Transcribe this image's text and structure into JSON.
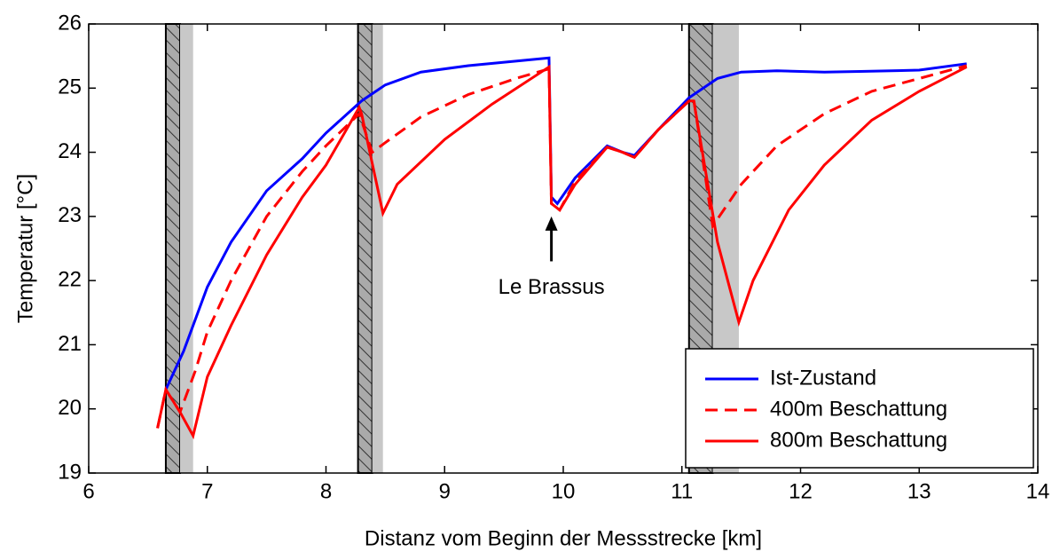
{
  "chart_data": {
    "type": "line",
    "xlabel": "Distanz vom Beginn der Messstrecke [km]",
    "ylabel": "Temperatur [°C]",
    "xlim": [
      6,
      14
    ],
    "xticks": [
      6,
      7,
      8,
      9,
      10,
      11,
      12,
      13,
      14
    ],
    "ylim": [
      19,
      26
    ],
    "yticks": [
      19,
      20,
      21,
      22,
      23,
      24,
      25,
      26
    ],
    "grid": false,
    "legend": "lower right",
    "regions": [
      {
        "start": 6.65,
        "end": 6.77,
        "style": "hatched"
      },
      {
        "start": 6.77,
        "end": 6.88,
        "style": "gray"
      },
      {
        "start": 8.27,
        "end": 8.39,
        "style": "hatched"
      },
      {
        "start": 8.39,
        "end": 8.48,
        "style": "gray"
      },
      {
        "start": 11.06,
        "end": 11.26,
        "style": "hatched"
      },
      {
        "start": 11.26,
        "end": 11.48,
        "style": "gray"
      }
    ],
    "annotations": [
      {
        "text": "Le Brassus",
        "x": 9.9,
        "y": 22.3,
        "arrow_to": 23.0
      }
    ],
    "series": [
      {
        "name": "Ist-Zustand",
        "color": "#0000ff",
        "linestyle": "solid",
        "x": [
          6.65,
          6.8,
          7.0,
          7.2,
          7.5,
          7.8,
          8.0,
          8.3,
          8.5,
          8.8,
          9.2,
          9.6,
          9.88,
          9.9,
          9.95,
          10.1,
          10.37,
          10.5,
          10.6,
          10.8,
          11.06,
          11.3,
          11.5,
          11.8,
          12.2,
          12.5,
          13.0,
          13.4
        ],
        "values": [
          20.3,
          20.9,
          21.9,
          22.6,
          23.4,
          23.9,
          24.3,
          24.8,
          25.05,
          25.25,
          25.35,
          25.42,
          25.47,
          23.3,
          23.2,
          23.6,
          24.1,
          24.0,
          23.95,
          24.35,
          24.85,
          25.15,
          25.25,
          25.27,
          25.25,
          25.26,
          25.28,
          25.38
        ]
      },
      {
        "name": "400m Beschattung",
        "color": "#ff0000",
        "linestyle": "dashed",
        "x": [
          6.58,
          6.65,
          6.77,
          6.9,
          7.0,
          7.2,
          7.5,
          7.8,
          8.0,
          8.28,
          8.39,
          8.5,
          8.8,
          9.2,
          9.6,
          9.88,
          9.9,
          9.97,
          10.1,
          10.37,
          10.5,
          10.6,
          10.8,
          11.06,
          11.1,
          11.26,
          11.5,
          11.8,
          12.2,
          12.6,
          13.0,
          13.4
        ],
        "values": [
          19.7,
          20.3,
          19.95,
          20.6,
          21.2,
          22.0,
          23.0,
          23.7,
          24.1,
          24.6,
          24.0,
          24.15,
          24.55,
          24.9,
          25.15,
          25.3,
          23.2,
          23.1,
          23.55,
          24.08,
          24.0,
          23.92,
          24.35,
          24.8,
          24.82,
          22.85,
          23.5,
          24.1,
          24.6,
          24.95,
          25.15,
          25.35
        ]
      },
      {
        "name": "800m Beschattung",
        "color": "#ff0000",
        "linestyle": "solid",
        "x": [
          6.58,
          6.65,
          6.77,
          6.88,
          7.0,
          7.2,
          7.5,
          7.8,
          8.0,
          8.28,
          8.3,
          8.48,
          8.6,
          9.0,
          9.4,
          9.88,
          9.9,
          9.97,
          10.1,
          10.37,
          10.5,
          10.6,
          10.8,
          11.06,
          11.1,
          11.3,
          11.48,
          11.6,
          11.9,
          12.2,
          12.6,
          13.0,
          13.4
        ],
        "values": [
          19.7,
          20.3,
          19.95,
          19.58,
          20.5,
          21.3,
          22.4,
          23.3,
          23.8,
          24.7,
          24.6,
          23.05,
          23.5,
          24.2,
          24.75,
          25.33,
          23.2,
          23.1,
          23.5,
          24.08,
          24.0,
          23.92,
          24.35,
          24.8,
          24.8,
          22.6,
          21.35,
          22.0,
          23.1,
          23.8,
          24.5,
          24.95,
          25.33
        ]
      }
    ]
  }
}
